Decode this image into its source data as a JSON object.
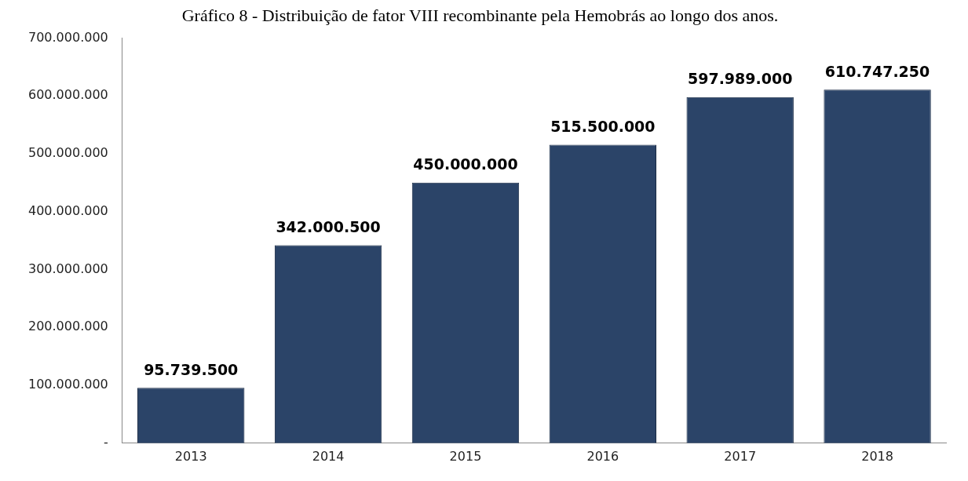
{
  "chart_data": {
    "type": "bar",
    "title": "Gráfico 8 - Distribuição de fator VIII recombinante pela Hemobrás ao longo dos anos.",
    "categories": [
      "2013",
      "2014",
      "2015",
      "2016",
      "2017",
      "2018"
    ],
    "values": [
      95739500,
      342000500,
      450000000,
      515500000,
      597989000,
      610747250
    ],
    "value_labels": [
      "95.739.500",
      "342.000.500",
      "450.000.000",
      "515.500.000",
      "597.989.000",
      "610.747.250"
    ],
    "color": "#2b4468",
    "ylim": [
      0,
      700000000
    ],
    "yticks": [
      {
        "value": 0,
        "label": "-"
      },
      {
        "value": 100000000,
        "label": "100.000.000"
      },
      {
        "value": 200000000,
        "label": "200.000.000"
      },
      {
        "value": 300000000,
        "label": "300.000.000"
      },
      {
        "value": 400000000,
        "label": "400.000.000"
      },
      {
        "value": 500000000,
        "label": "500.000.000"
      },
      {
        "value": 600000000,
        "label": "600.000.000"
      },
      {
        "value": 700000000,
        "label": "700.000.000"
      }
    ],
    "grid": false,
    "legend": false
  }
}
